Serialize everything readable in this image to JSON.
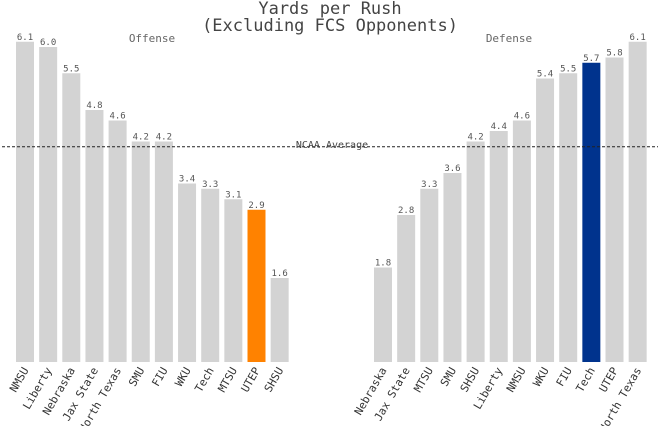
{
  "colors": {
    "bar": "#d3d3d3",
    "highlight_offense": "#ff8200",
    "highlight_defense": "#00338d",
    "average_line": "#222222"
  },
  "chart_data": {
    "type": "bar",
    "title_line1": "Yards per Rush",
    "title_line2": "(Excluding FCS Opponents)",
    "reference_line": {
      "label": "NCAA Average",
      "value": 4.1,
      "style": "dashed"
    },
    "ylim": [
      0,
      6.3
    ],
    "grid": false,
    "panels": [
      {
        "title": "Offense",
        "categories": [
          "NMSU",
          "Liberty",
          "Nebraska",
          "Jax State",
          "North Texas",
          "SMU",
          "FIU",
          "WKU",
          "Tech",
          "MTSU",
          "UTEP",
          "SHSU"
        ],
        "values": [
          6.1,
          6.0,
          5.5,
          4.8,
          4.6,
          4.2,
          4.2,
          3.4,
          3.3,
          3.1,
          2.9,
          1.6
        ],
        "highlight": "UTEP",
        "highlight_color": "#ff8200"
      },
      {
        "title": "Defense",
        "categories": [
          "Nebraska",
          "Jax State",
          "MTSU",
          "SMU",
          "SHSU",
          "Liberty",
          "NMSU",
          "WKU",
          "FIU",
          "Tech",
          "UTEP",
          "North Texas"
        ],
        "values": [
          1.8,
          2.8,
          3.3,
          3.6,
          4.2,
          4.4,
          4.6,
          5.4,
          5.5,
          5.7,
          5.8,
          6.1
        ],
        "highlight": "Tech",
        "highlight_color": "#00338d"
      }
    ]
  }
}
